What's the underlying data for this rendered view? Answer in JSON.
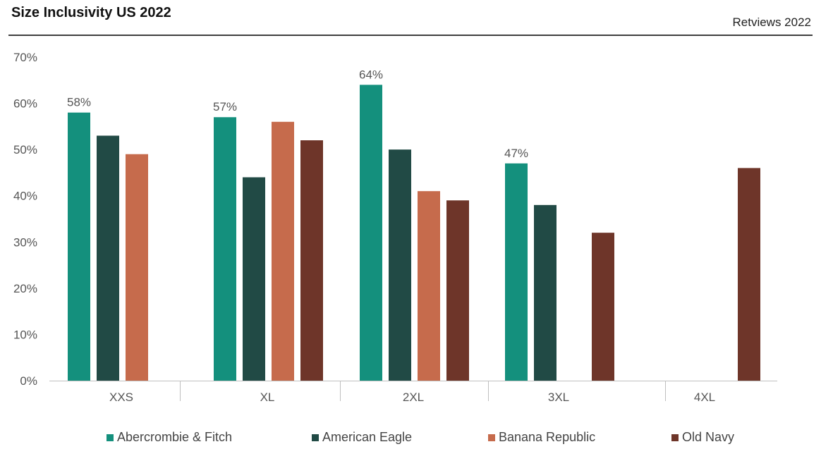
{
  "header": {
    "title": "Size Inclusivity US 2022",
    "source": "Retviews 2022"
  },
  "colors": {
    "abercrombie": "#14907D",
    "american_eagle": "#214A45",
    "banana_republic": "#C66B4C",
    "old_navy": "#6E3529",
    "axis": "#bfbfbf",
    "text": "#555555"
  },
  "chart_data": {
    "type": "bar",
    "title": "Size Inclusivity US 2022",
    "xlabel": "",
    "ylabel": "",
    "ylim": [
      0,
      70
    ],
    "y_ticks": [
      "0%",
      "10%",
      "20%",
      "30%",
      "40%",
      "50%",
      "60%",
      "70%"
    ],
    "y_tick_values": [
      0,
      10,
      20,
      30,
      40,
      50,
      60,
      70
    ],
    "grid": false,
    "legend_position": "bottom",
    "categories": [
      "XXS",
      "XL",
      "2XL",
      "3XL",
      "4XL"
    ],
    "series": [
      {
        "name": "Abercrombie & Fitch",
        "color": "#14907D",
        "values": [
          58,
          57,
          64,
          47,
          null
        ]
      },
      {
        "name": "American Eagle",
        "color": "#214A45",
        "values": [
          53,
          44,
          50,
          38,
          null
        ]
      },
      {
        "name": "Banana Republic",
        "color": "#C66B4C",
        "values": [
          49,
          56,
          41,
          null,
          null
        ]
      },
      {
        "name": "Old Navy",
        "color": "#6E3529",
        "values": [
          null,
          52,
          39,
          32,
          46
        ]
      }
    ],
    "data_labels": [
      {
        "series": 0,
        "category": 0,
        "text": "58%"
      },
      {
        "series": 0,
        "category": 1,
        "text": "57%"
      },
      {
        "series": 0,
        "category": 2,
        "text": "64%"
      },
      {
        "series": 0,
        "category": 3,
        "text": "47%"
      }
    ]
  }
}
